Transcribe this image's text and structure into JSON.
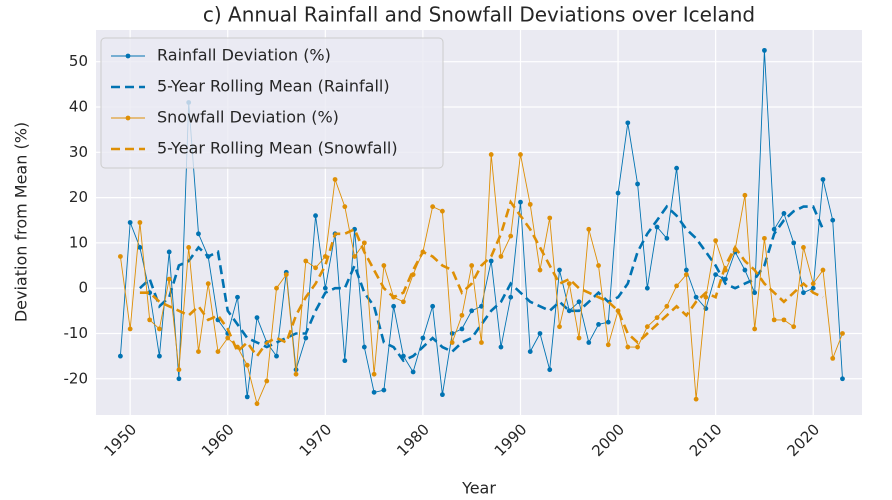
{
  "chart_data": {
    "type": "line",
    "title": "c) Annual Rainfall and Snowfall Deviations over Iceland",
    "x_label": "Year",
    "y_label": "Deviation from Mean (%)",
    "x": [
      1949,
      1950,
      1951,
      1952,
      1953,
      1954,
      1955,
      1956,
      1957,
      1958,
      1959,
      1960,
      1961,
      1962,
      1963,
      1964,
      1965,
      1966,
      1967,
      1968,
      1969,
      1970,
      1971,
      1972,
      1973,
      1974,
      1975,
      1976,
      1977,
      1978,
      1979,
      1980,
      1981,
      1982,
      1983,
      1984,
      1985,
      1986,
      1987,
      1988,
      1989,
      1990,
      1991,
      1992,
      1993,
      1994,
      1995,
      1996,
      1997,
      1998,
      1999,
      2000,
      2001,
      2002,
      2003,
      2004,
      2005,
      2006,
      2007,
      2008,
      2009,
      2010,
      2011,
      2012,
      2013,
      2014,
      2015,
      2016,
      2017,
      2018,
      2019,
      2020,
      2021,
      2022,
      2023
    ],
    "series": [
      {
        "name": "Rainfall Deviation (%)",
        "color": "#0173b2",
        "linestyle": "solid",
        "marker": true,
        "values": [
          -15,
          14.5,
          9,
          -1,
          -15,
          8,
          -20,
          41,
          12,
          7,
          -7,
          -10,
          -2,
          -24,
          -6.5,
          -12,
          -15,
          3.5,
          -18,
          -11,
          16,
          0,
          12,
          -16,
          13,
          -13,
          -23,
          -22.5,
          -4,
          -15,
          -18.5,
          -11,
          -4,
          -23.5,
          -10,
          -9,
          -5,
          -4,
          6,
          -13,
          -2,
          19,
          -14,
          -10,
          -18,
          4,
          -5,
          -3,
          -12,
          -8,
          -7.5,
          21,
          36.5,
          23,
          0,
          13.5,
          11,
          26.5,
          4,
          -2,
          -4.5,
          3,
          2,
          8,
          4,
          -1,
          52.5,
          13,
          16.5,
          10,
          -1,
          0,
          24,
          15,
          -20
        ]
      },
      {
        "name": "5-Year Rolling Mean (Rainfall)",
        "color": "#0173b2",
        "linestyle": "dashed",
        "marker": false,
        "values": [
          null,
          null,
          0,
          2,
          -4,
          -2,
          5,
          6,
          9,
          7,
          8,
          -5,
          -8,
          -11,
          -12,
          -13,
          -12,
          -11,
          -10,
          -10,
          -5,
          -1,
          0,
          0,
          5,
          -1,
          -4,
          -12,
          -13,
          -16,
          -15,
          -13,
          -11,
          -13,
          -14,
          -12,
          -11,
          -8,
          -5,
          -3,
          1,
          -1,
          -3,
          -4,
          -5,
          -3,
          -5,
          -5,
          -3,
          -1,
          -3,
          -2,
          1,
          8,
          12,
          15,
          18,
          16,
          13,
          11,
          8,
          5,
          1,
          0,
          1,
          2,
          5,
          12,
          15,
          17,
          18,
          18,
          13,
          null,
          null
        ]
      },
      {
        "name": "Snowfall Deviation (%)",
        "color": "#de8f05",
        "linestyle": "solid",
        "marker": true,
        "values": [
          7,
          -9,
          14.5,
          -7,
          -9,
          2,
          -18,
          9,
          -14,
          1,
          -14,
          -11,
          -13,
          -17,
          -25.5,
          -20.5,
          0,
          3,
          -19,
          6,
          4.5,
          7,
          24,
          18,
          7,
          10,
          -19,
          5,
          -2,
          -3,
          3,
          8,
          18,
          17,
          -12,
          -6,
          5,
          -12,
          29.5,
          7,
          11.5,
          29.5,
          18.5,
          4,
          15.5,
          -8.5,
          1,
          -11,
          13,
          5,
          -12.5,
          -5,
          -13,
          -13,
          -8.5,
          -6.5,
          -4,
          0.5,
          3,
          -24.5,
          -2,
          10.5,
          4,
          8.5,
          20.5,
          -9,
          11,
          -7,
          -7,
          -8.5,
          9,
          1,
          4,
          -15.5,
          -10
        ]
      },
      {
        "name": "5-Year Rolling Mean (Snowfall)",
        "color": "#de8f05",
        "linestyle": "dashed",
        "marker": false,
        "values": [
          null,
          null,
          -1,
          -1,
          -3,
          -4,
          -5,
          -6,
          -4,
          -7,
          -6,
          -9,
          -14,
          -12,
          -15,
          -12,
          -11,
          -12,
          -6,
          -2,
          1,
          5,
          12,
          12,
          13,
          8,
          4,
          0,
          -2,
          -1,
          4,
          8,
          7,
          5,
          4,
          -1,
          1,
          5,
          7,
          12,
          19,
          16,
          13,
          9,
          5,
          1,
          2,
          0,
          -1,
          -2,
          -3,
          -5,
          -10,
          -12,
          -10,
          -8,
          -6,
          -4,
          -6,
          -3,
          -1,
          -2,
          5,
          9,
          6,
          4,
          1,
          -1,
          -3,
          -1,
          1,
          -1,
          -2,
          null,
          null
        ]
      }
    ],
    "xlim": [
      1946.5,
      2025
    ],
    "ylim": [
      -28,
      57
    ],
    "xticks": [
      1950,
      1960,
      1970,
      1980,
      1990,
      2000,
      2010,
      2020
    ],
    "yticks": [
      -20,
      -10,
      0,
      10,
      20,
      30,
      40,
      50
    ],
    "grid": true,
    "legend": "upper left"
  }
}
